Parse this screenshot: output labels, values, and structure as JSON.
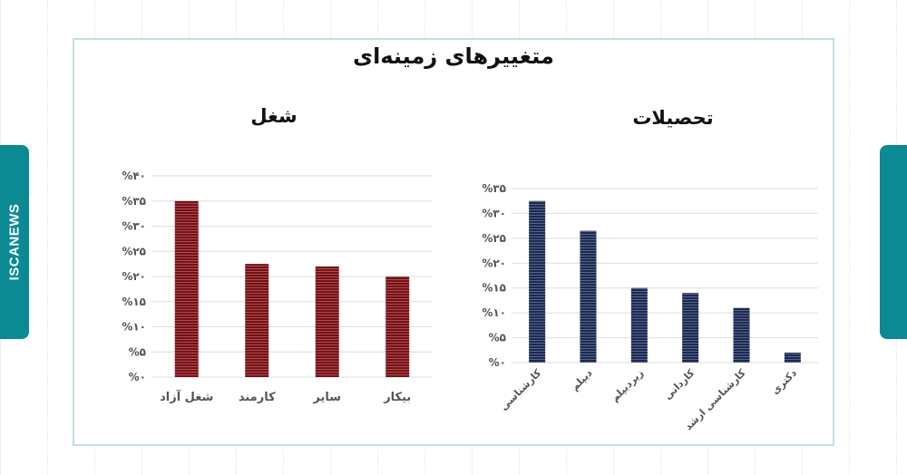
{
  "page": {
    "title": "متغییرهای زمینه‌ای",
    "side_brand": "ISCANEWS",
    "colors": {
      "teal": "#0b8a94",
      "border": "#bfe0e3",
      "job_bar": "#7a0f14",
      "edu_bar": "#1b2a55"
    }
  },
  "chart_data": [
    {
      "id": "job",
      "type": "bar",
      "title": "شغل",
      "categories": [
        "شغل آزاد",
        "کارمند",
        "سایر",
        "بیکار"
      ],
      "values": [
        35,
        22.5,
        22,
        20
      ],
      "ylim": [
        0,
        40
      ],
      "yticks": [
        0,
        5,
        10,
        15,
        20,
        25,
        30,
        35,
        40
      ],
      "ytick_labels": [
        "%۰",
        "%۵",
        "%۱۰",
        "%۱۵",
        "%۲۰",
        "%۲۵",
        "%۳۰",
        "%۳۵",
        "%۴۰"
      ],
      "grid": true,
      "color": "#7a0f14"
    },
    {
      "id": "education",
      "type": "bar",
      "title": "تحصیلات",
      "categories": [
        "کارشناسی",
        "دیپلم",
        "زیردیپلم",
        "کاردانی",
        "کارشناسی ارشد",
        "دکتری"
      ],
      "values": [
        32.5,
        26.5,
        15,
        14,
        11,
        2
      ],
      "ylim": [
        0,
        35
      ],
      "yticks": [
        0,
        5,
        10,
        15,
        20,
        25,
        30,
        35
      ],
      "ytick_labels": [
        "%۰",
        "%۵",
        "%۱۰",
        "%۱۵",
        "%۲۰",
        "%۲۵",
        "%۳۰",
        "%۳۵"
      ],
      "grid": true,
      "color": "#1b2a55"
    }
  ]
}
